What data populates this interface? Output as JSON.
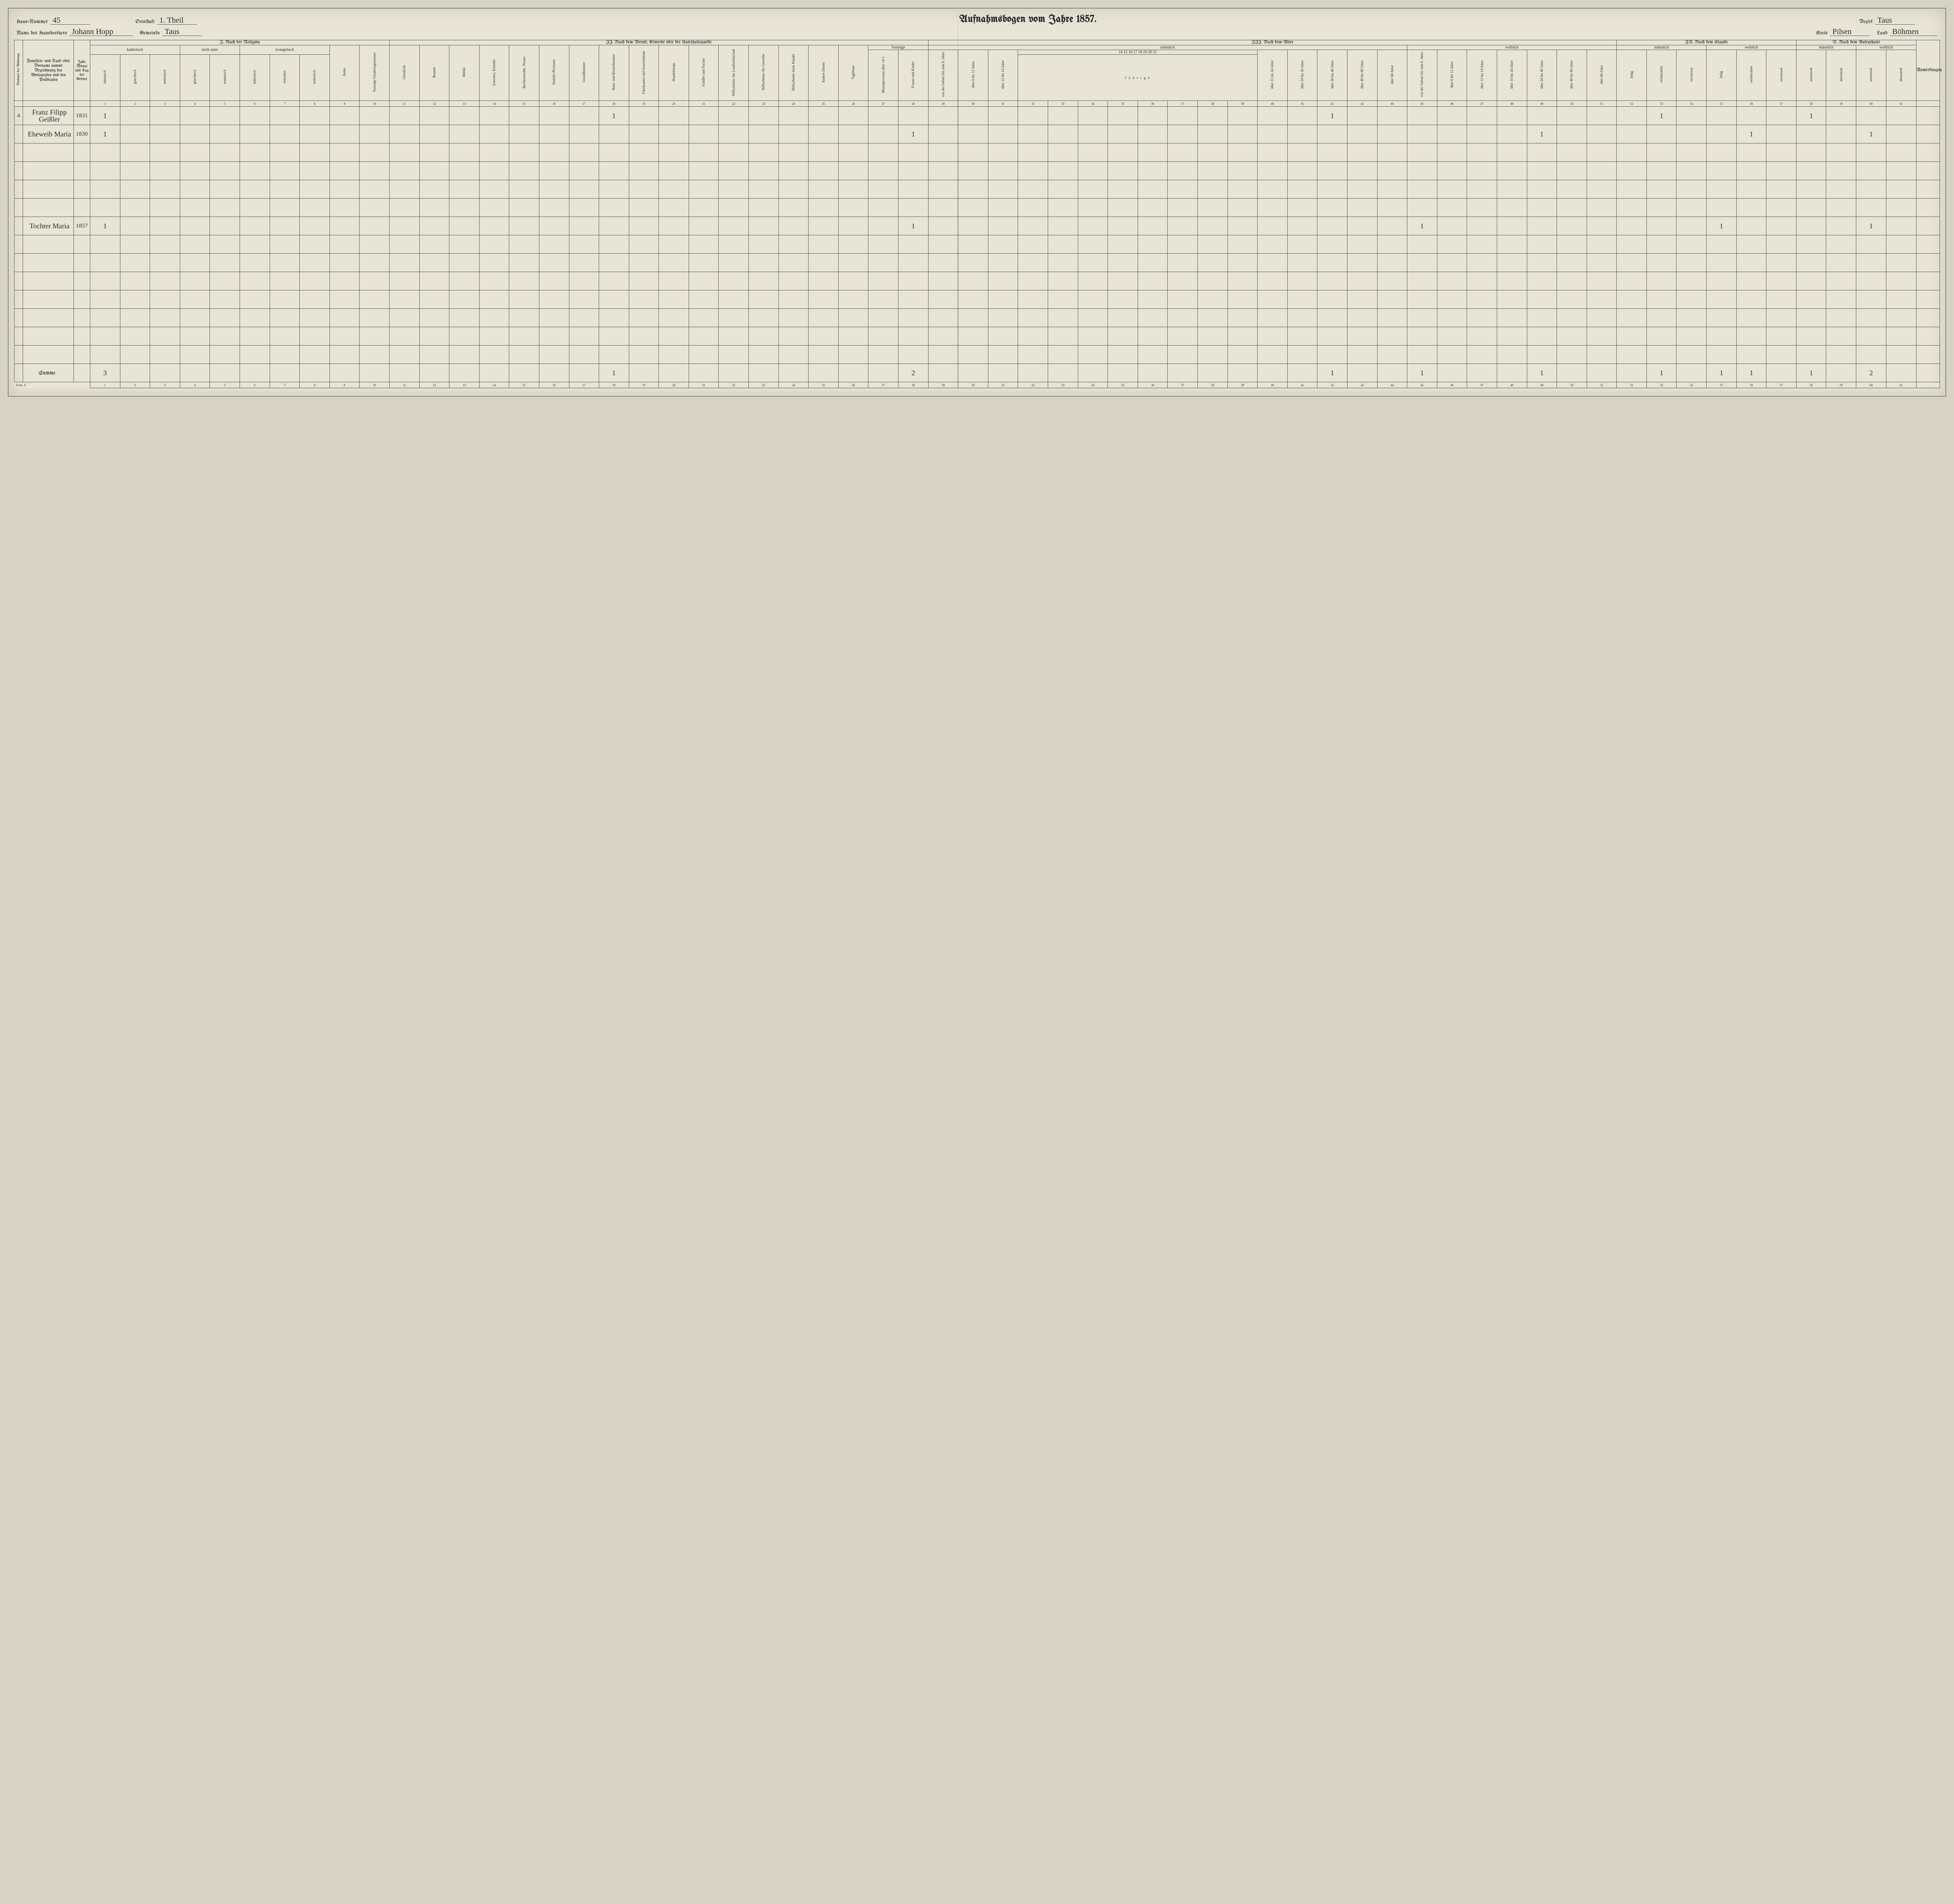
{
  "header": {
    "haus_nummer_lbl": "Haus-Nummer",
    "haus_nummer": "45",
    "hausbesitzer_lbl": "Name des Hausbesitzers",
    "hausbesitzer": "Johann Hopp",
    "ortschaft_lbl": "Ortschaft",
    "ortschaft": "1. Theil",
    "gemeinde_lbl": "Gemeinde",
    "gemeinde": "Taus",
    "title": "Aufnahmsbogen vom Jahre 1857.",
    "bezirk_lbl": "Bezirk",
    "bezirk": "Taus",
    "kreis_lbl": "Kreis",
    "kreis": "Pilsen",
    "land_lbl": "Land",
    "land": "Böhmen"
  },
  "sections": {
    "s1": "I. Nach der Religion",
    "s2": "II. Nach dem Berufe, Erwerbe oder der Unterhaltsquelle",
    "s3": "III. Nach dem Alter",
    "s4": "IV. Nach dem Stande",
    "s5": "V. Nach dem Aufenthalte",
    "col_a": "Nummer der Wohnung",
    "col_b": "Familien- und Tauf- oder Vorname sammt Bezeichnung des Adelsgrades und des Prädicates",
    "col_c": "Jahr, Monat und Tag der Geburt",
    "anm": "Anmerkungen",
    "katholisch": "katholisch",
    "nicht_unirt": "nicht unirt",
    "evangelisch": "evangelisch",
    "maennlich": "männlich",
    "weiblich": "weiblich",
    "sonstige": "Sonstige",
    "faehrige": "f ä h r i g e",
    "mil_years": "14 15 16 17 18 19 20 21"
  },
  "vcols": {
    "c1": "lateinisch",
    "c2": "griechisch",
    "c3": "armenisch",
    "c4": "griechisch",
    "c5": "armenisch",
    "c6": "lutherisch",
    "c7": "reformirt",
    "c8": "unitarisch",
    "c9": "Juden",
    "c10": "Sonstige Glaubensgenossen",
    "c11": "Geistliche",
    "c12": "Beamte",
    "c13": "Militär",
    "c14": "Literaten, Künstler",
    "c15": "Rechtsanwälte, Notare",
    "c16": "Sanitäts-Personen",
    "c17": "Grundbesitzer",
    "c18": "Haus- und Rentenbesitzer",
    "c19": "Fabrikanten und Gewerbsleute",
    "c20": "Handelsleute",
    "c21": "Schiffer und Fischer",
    "c22": "Hilfsarbeiter der Landwirthschaft",
    "c23": "Hilfsarbeiter für Gewerbe",
    "c24": "Hilfsarbeiter beim Handel",
    "c25": "Andere Diener",
    "c26": "Taglöhner",
    "c27": "Mannspersonen über 14 J.",
    "c28": "Frauen und Kinder",
    "c29": "von der Geburt bis zum 6. Jahre",
    "c30": "über 6 bis 12 Jahre",
    "c31": "über 12 bis 14 Jahre",
    "c40": "über 21 bis 24 Jahre",
    "c41": "über 24 bis 26 Jahre",
    "c42": "über 26 bis 40 Jahre",
    "c43": "über 40 bis 60 Jahre",
    "c44": "über 60 Jahre",
    "c45": "von der Geburt bis zum 6. Jahre",
    "c46": "über 6 bis 12 Jahre",
    "c47": "über 12 bis 14 Jahre",
    "c48": "über 14 bis 24 Jahre",
    "c49": "über 24 bis 40 Jahre",
    "c50": "über 40 bis 60 Jahre",
    "c51": "über 60 Jahre",
    "c52": "ledig",
    "c53": "verheirathet",
    "c54": "verwitwet",
    "c55": "ledig",
    "c56": "verheirathet",
    "c57": "verwitwet",
    "c58": "anwesend",
    "c59": "abwesend",
    "c60": "anwesend",
    "c61": "abwesend"
  },
  "rows": [
    {
      "woh": "4",
      "name": "Franz Filipp Geißler",
      "geb": "1831",
      "marks": {
        "1": "1",
        "18": "1",
        "42": "1",
        "53": "1",
        "58": "1"
      }
    },
    {
      "woh": "",
      "name": "Eheweib Maria",
      "geb": "1830",
      "marks": {
        "1": "1",
        "28": "1",
        "49": "1",
        "56": "1",
        "60": "1"
      }
    },
    {
      "woh": "",
      "name": "",
      "geb": "",
      "marks": {}
    },
    {
      "woh": "",
      "name": "",
      "geb": "",
      "marks": {}
    },
    {
      "woh": "",
      "name": "",
      "geb": "",
      "marks": {}
    },
    {
      "woh": "",
      "name": "",
      "geb": "",
      "marks": {}
    },
    {
      "woh": "",
      "name": "Tochter Maria",
      "geb": "1857",
      "marks": {
        "1": "1",
        "28": "1",
        "45": "1",
        "55": "1",
        "60": "1"
      }
    },
    {
      "woh": "",
      "name": "",
      "geb": "",
      "marks": {}
    },
    {
      "woh": "",
      "name": "",
      "geb": "",
      "marks": {}
    },
    {
      "woh": "",
      "name": "",
      "geb": "",
      "marks": {}
    },
    {
      "woh": "",
      "name": "",
      "geb": "",
      "marks": {}
    },
    {
      "woh": "",
      "name": "",
      "geb": "",
      "marks": {}
    },
    {
      "woh": "",
      "name": "",
      "geb": "",
      "marks": {}
    },
    {
      "woh": "",
      "name": "",
      "geb": "",
      "marks": {}
    }
  ],
  "summe_lbl": "Summe",
  "summe": {
    "1": "3",
    "18": "1",
    "28": "2",
    "42": "1",
    "45": "1",
    "49": "1",
    "53": "1",
    "55": "1",
    "56": "1",
    "58": "1",
    "60": "2"
  },
  "form": "Form. F."
}
